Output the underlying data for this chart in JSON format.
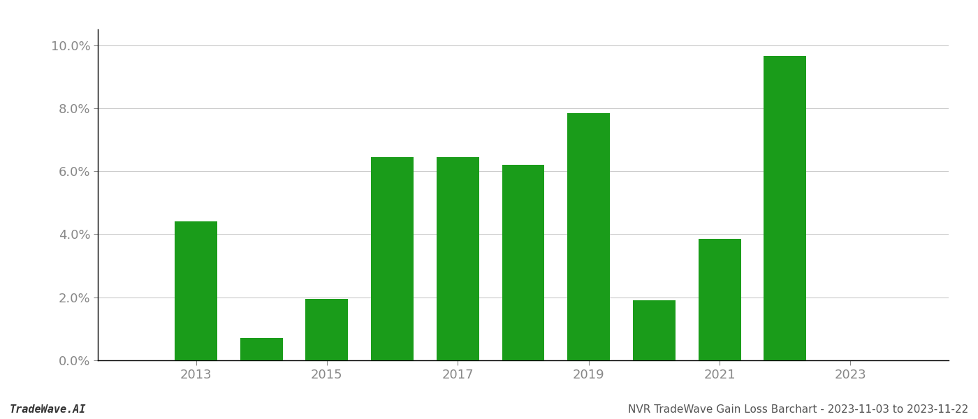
{
  "years": [
    2013,
    2014,
    2015,
    2016,
    2017,
    2018,
    2019,
    2020,
    2021,
    2022
  ],
  "values": [
    0.044,
    0.007,
    0.0195,
    0.0645,
    0.0645,
    0.062,
    0.0785,
    0.019,
    0.0385,
    0.0965
  ],
  "bar_color": "#1a9c1a",
  "ylim": [
    0,
    0.105
  ],
  "yticks": [
    0.0,
    0.02,
    0.04,
    0.06,
    0.08,
    0.1
  ],
  "footer_left": "TradeWave.AI",
  "footer_right": "NVR TradeWave Gain Loss Barchart - 2023-11-03 to 2023-11-22",
  "background_color": "#ffffff",
  "grid_color": "#cccccc",
  "xtick_labels": [
    "2013",
    "2015",
    "2017",
    "2019",
    "2021",
    "2023"
  ],
  "xtick_positions": [
    2013,
    2015,
    2017,
    2019,
    2021,
    2023
  ],
  "xlim_left": 2011.5,
  "xlim_right": 2024.5
}
